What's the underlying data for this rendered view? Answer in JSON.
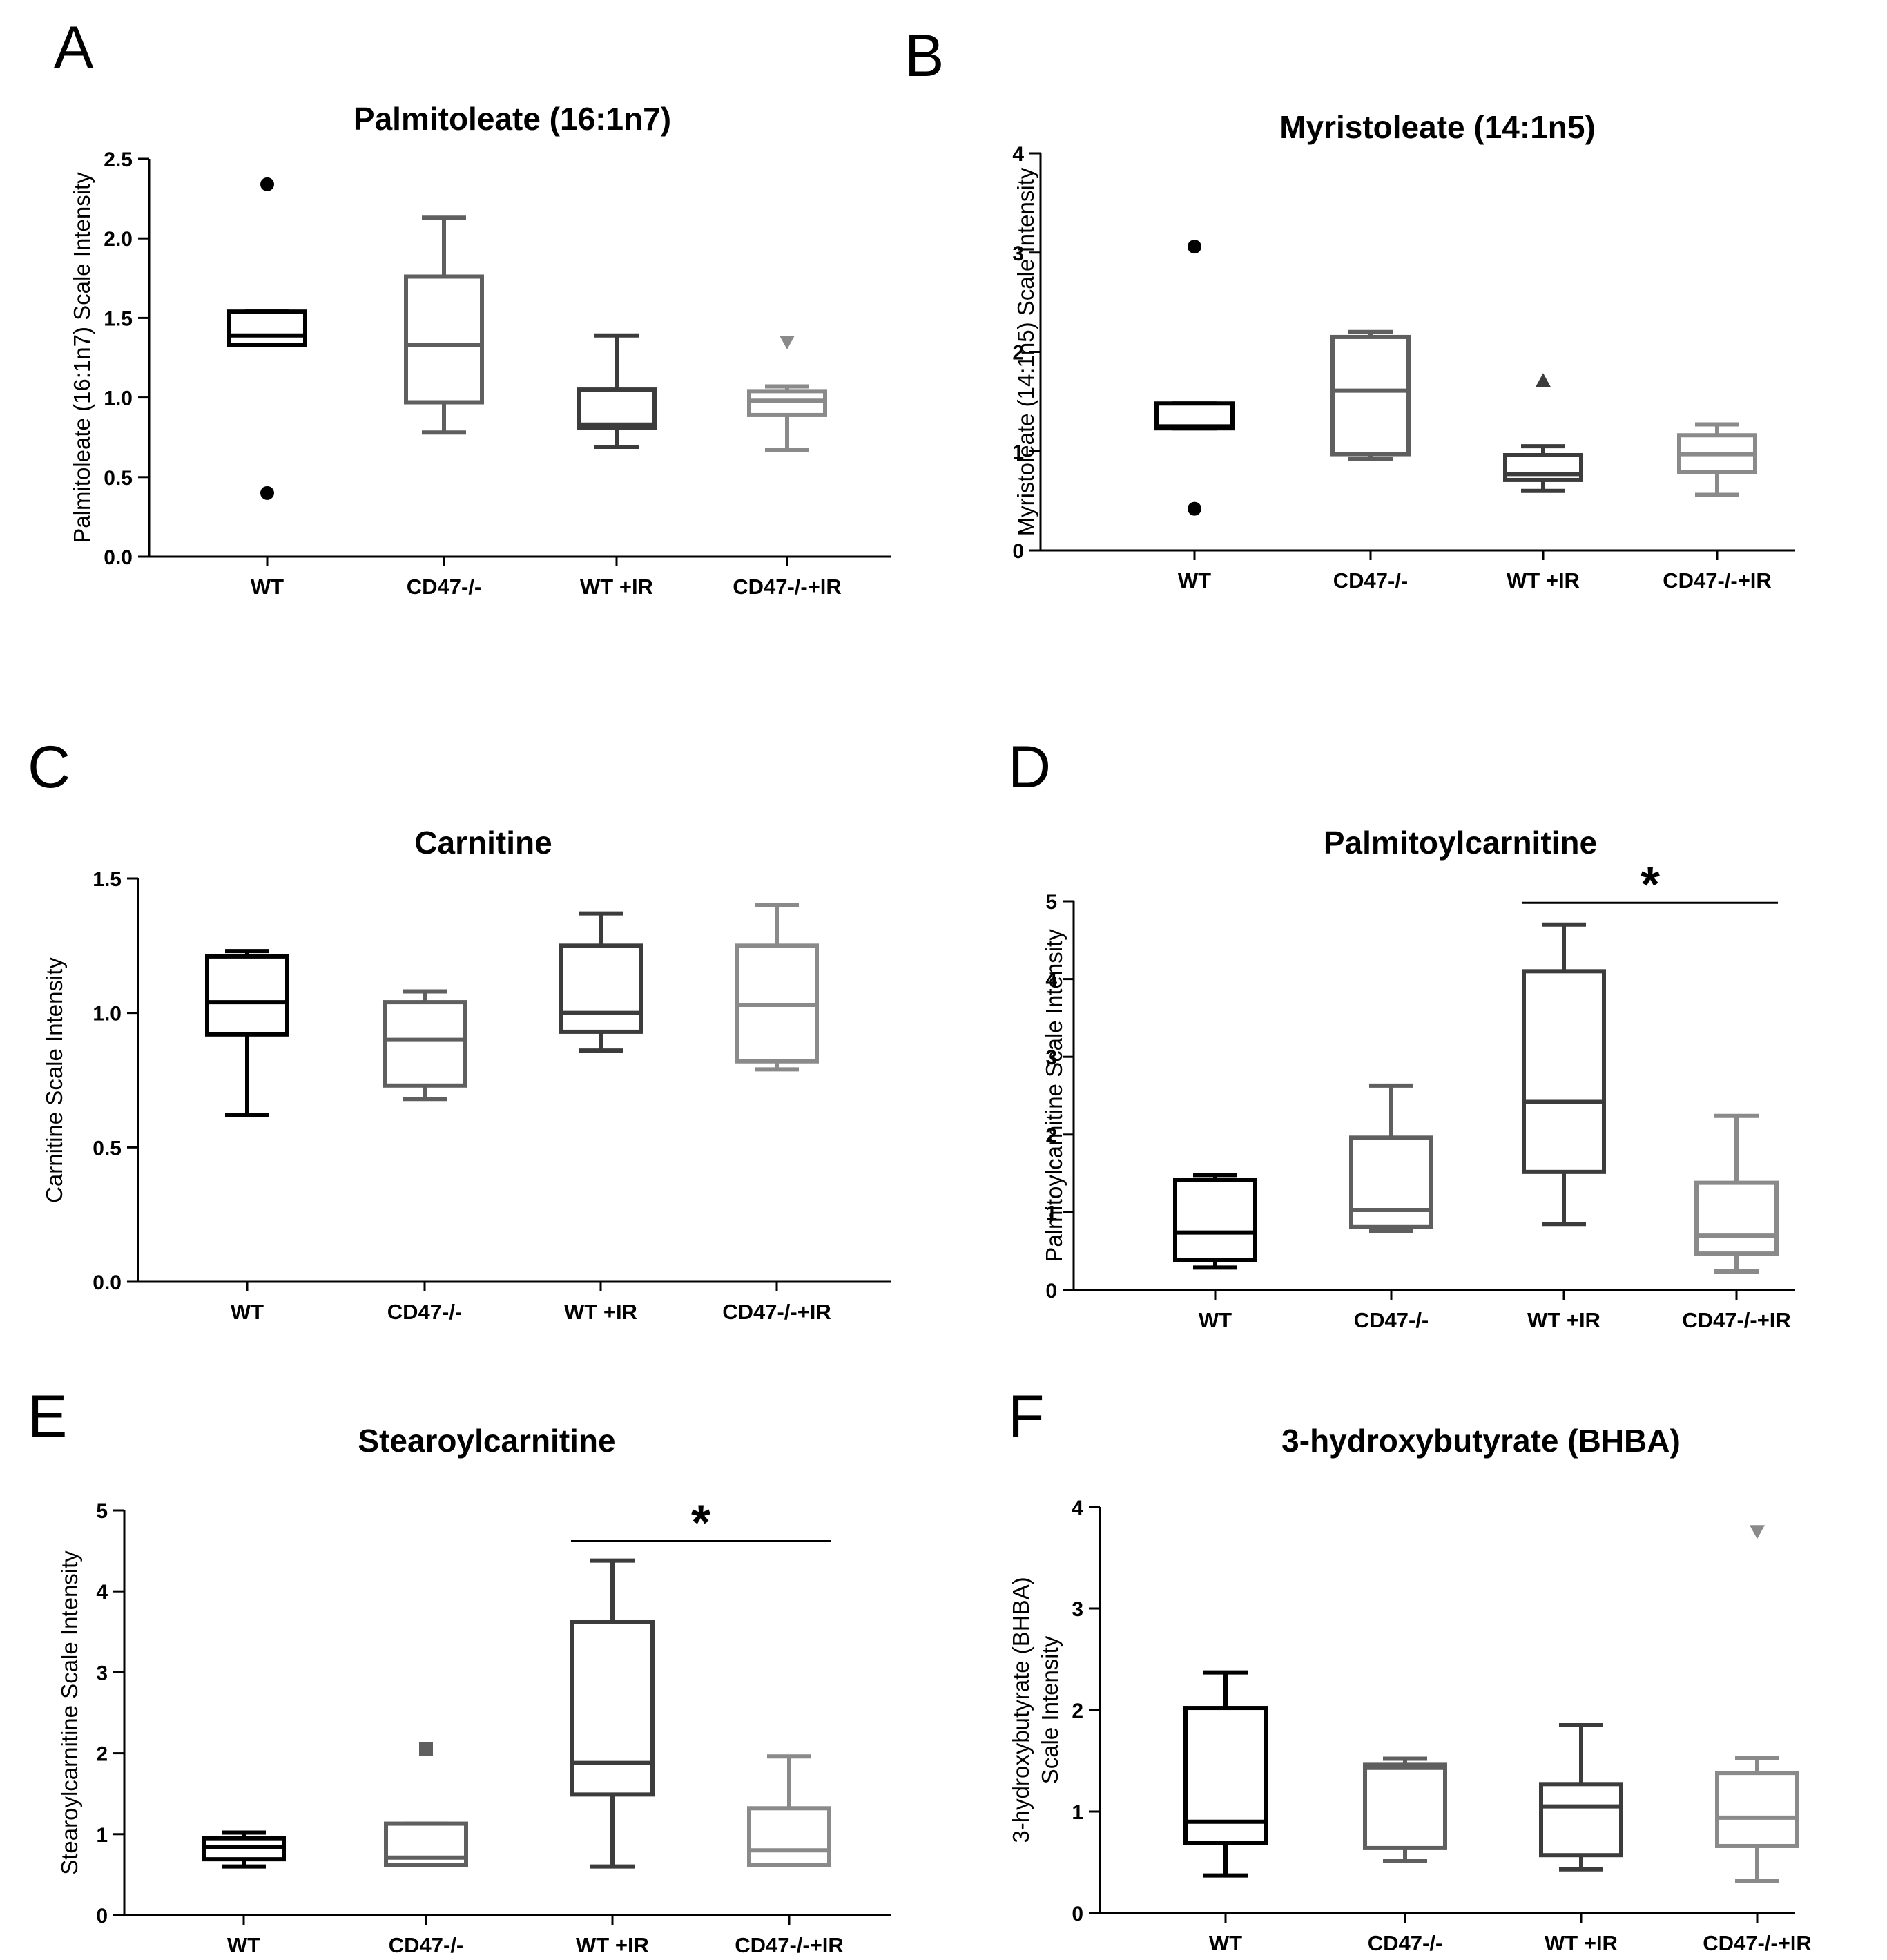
{
  "chart_data": [
    {
      "panel": "A",
      "type": "box",
      "title": "Palmitoleate (16:1n7)",
      "ylabel": "Palmitoleate (16:1n7) Scale Intensity",
      "xlabel": "",
      "ylim": [
        0,
        2.5
      ],
      "yticks": [
        "0.0",
        "0.5",
        "1.0",
        "1.5",
        "2.0",
        "2.5"
      ],
      "categories": [
        "WT",
        "CD47-/-",
        "WT +IR",
        "CD47-/-+IR"
      ],
      "boxes": [
        {
          "group": "WT",
          "color": "#000000",
          "whisker_low": 1.33,
          "q1": 1.33,
          "median": 1.39,
          "q3": 1.54,
          "whisker_high": 1.54,
          "outliers": [
            {
              "value": 2.34,
              "marker": "circle"
            },
            {
              "value": 0.4,
              "marker": "circle"
            }
          ]
        },
        {
          "group": "CD47-/-",
          "color": "#5f5f5f",
          "whisker_low": 0.78,
          "q1": 0.97,
          "median": 1.33,
          "q3": 1.76,
          "whisker_high": 2.13,
          "outliers": []
        },
        {
          "group": "WT +IR",
          "color": "#3c3c3c",
          "whisker_low": 0.69,
          "q1": 0.81,
          "median": 0.83,
          "q3": 1.05,
          "whisker_high": 1.39,
          "outliers": []
        },
        {
          "group": "CD47-/-+IR",
          "color": "#8a8a8a",
          "whisker_low": 0.67,
          "q1": 0.89,
          "median": 0.98,
          "q3": 1.04,
          "whisker_high": 1.07,
          "outliers": [
            {
              "value": 1.35,
              "marker": "triangle-down"
            }
          ]
        }
      ],
      "significance": null
    },
    {
      "panel": "B",
      "type": "box",
      "title": "Myristoleate (14:1n5)",
      "ylabel": "Myristoleate (14:1n5) Scale Intensity",
      "xlabel": "",
      "ylim": [
        0,
        4
      ],
      "yticks": [
        "0",
        "1",
        "2",
        "3",
        "4"
      ],
      "categories": [
        "WT",
        "CD47-/-",
        "WT +IR",
        "CD47-/-+IR"
      ],
      "boxes": [
        {
          "group": "WT",
          "color": "#000000",
          "whisker_low": 1.23,
          "q1": 1.23,
          "median": 1.25,
          "q3": 1.48,
          "whisker_high": 1.48,
          "outliers": [
            {
              "value": 3.06,
              "marker": "circle"
            },
            {
              "value": 0.42,
              "marker": "circle"
            }
          ]
        },
        {
          "group": "CD47-/-",
          "color": "#5f5f5f",
          "whisker_low": 0.92,
          "q1": 0.97,
          "median": 1.61,
          "q3": 2.15,
          "whisker_high": 2.2,
          "outliers": []
        },
        {
          "group": "WT +IR",
          "color": "#3c3c3c",
          "whisker_low": 0.6,
          "q1": 0.71,
          "median": 0.77,
          "q3": 0.96,
          "whisker_high": 1.05,
          "outliers": [
            {
              "value": 1.71,
              "marker": "triangle-up"
            }
          ]
        },
        {
          "group": "CD47-/-+IR",
          "color": "#8a8a8a",
          "whisker_low": 0.56,
          "q1": 0.79,
          "median": 0.97,
          "q3": 1.16,
          "whisker_high": 1.27,
          "outliers": []
        }
      ],
      "significance": null
    },
    {
      "panel": "C",
      "type": "box",
      "title": "Carnitine",
      "ylabel": "Carnitine Scale Intensity",
      "xlabel": "",
      "ylim": [
        0,
        1.5
      ],
      "yticks": [
        "0.0",
        "0.5",
        "1.0",
        "1.5"
      ],
      "categories": [
        "WT",
        "CD47-/-",
        "WT +IR",
        "CD47-/-+IR"
      ],
      "boxes": [
        {
          "group": "WT",
          "color": "#000000",
          "whisker_low": 0.62,
          "q1": 0.92,
          "median": 1.04,
          "q3": 1.21,
          "whisker_high": 1.23,
          "outliers": []
        },
        {
          "group": "CD47-/-",
          "color": "#5f5f5f",
          "whisker_low": 0.68,
          "q1": 0.73,
          "median": 0.9,
          "q3": 1.04,
          "whisker_high": 1.08,
          "outliers": []
        },
        {
          "group": "WT +IR",
          "color": "#3c3c3c",
          "whisker_low": 0.86,
          "q1": 0.93,
          "median": 1.0,
          "q3": 1.25,
          "whisker_high": 1.37,
          "outliers": []
        },
        {
          "group": "CD47-/-+IR",
          "color": "#8a8a8a",
          "whisker_low": 0.79,
          "q1": 0.82,
          "median": 1.03,
          "q3": 1.25,
          "whisker_high": 1.4,
          "outliers": []
        }
      ],
      "significance": null
    },
    {
      "panel": "D",
      "type": "box",
      "title": "Palmitoylcarnitine",
      "ylabel": "Palmitoylcarnitine Scale Intensity",
      "xlabel": "",
      "ylim": [
        0,
        5
      ],
      "yticks": [
        "0",
        "1",
        "2",
        "3",
        "4",
        "5"
      ],
      "categories": [
        "WT",
        "CD47-/-",
        "WT +IR",
        "CD47-/-+IR"
      ],
      "boxes": [
        {
          "group": "WT",
          "color": "#000000",
          "whisker_low": 0.29,
          "q1": 0.39,
          "median": 0.74,
          "q3": 1.42,
          "whisker_high": 1.48,
          "outliers": []
        },
        {
          "group": "CD47-/-",
          "color": "#5f5f5f",
          "whisker_low": 0.76,
          "q1": 0.81,
          "median": 1.03,
          "q3": 1.96,
          "whisker_high": 2.63,
          "outliers": []
        },
        {
          "group": "WT +IR",
          "color": "#3c3c3c",
          "whisker_low": 0.85,
          "q1": 1.52,
          "median": 2.42,
          "q3": 4.1,
          "whisker_high": 4.7,
          "outliers": []
        },
        {
          "group": "CD47-/-+IR",
          "color": "#8a8a8a",
          "whisker_low": 0.24,
          "q1": 0.47,
          "median": 0.7,
          "q3": 1.38,
          "whisker_high": 2.24,
          "outliers": []
        }
      ],
      "significance": {
        "label": "*",
        "from": "WT +IR",
        "to": "CD47-/-+IR",
        "y": 4.98
      }
    },
    {
      "panel": "E",
      "type": "box",
      "title": "Stearoylcarnitine",
      "ylabel": "Stearoylcarnitine Scale Intensity",
      "xlabel": "",
      "ylim": [
        0,
        5
      ],
      "yticks": [
        "0",
        "1",
        "2",
        "3",
        "4",
        "5"
      ],
      "categories": [
        "WT",
        "CD47-/-",
        "WT +IR",
        "CD47-/-+IR"
      ],
      "boxes": [
        {
          "group": "WT",
          "color": "#000000",
          "whisker_low": 0.6,
          "q1": 0.69,
          "median": 0.84,
          "q3": 0.95,
          "whisker_high": 1.02,
          "outliers": []
        },
        {
          "group": "CD47-/-",
          "color": "#5f5f5f",
          "whisker_low": 0.62,
          "q1": 0.62,
          "median": 0.71,
          "q3": 1.13,
          "whisker_high": 1.13,
          "outliers": [
            {
              "value": 2.05,
              "marker": "square"
            }
          ]
        },
        {
          "group": "WT +IR",
          "color": "#3c3c3c",
          "whisker_low": 0.6,
          "q1": 1.49,
          "median": 1.88,
          "q3": 3.62,
          "whisker_high": 4.38,
          "outliers": []
        },
        {
          "group": "CD47-/-+IR",
          "color": "#8a8a8a",
          "whisker_low": 0.62,
          "q1": 0.62,
          "median": 0.8,
          "q3": 1.32,
          "whisker_high": 1.96,
          "outliers": []
        }
      ],
      "significance": {
        "label": "*",
        "from": "WT +IR",
        "to": "CD47-/-+IR",
        "y": 4.62
      }
    },
    {
      "panel": "F",
      "type": "box",
      "title": "3-hydroxybutyrate (BHBA)",
      "ylabel": "3-hydroxybutyrate (BHBA) Scale Intensity",
      "ylabel_lines": [
        "3-hydroxybutyrate (BHBA)",
        "Scale Intensity"
      ],
      "xlabel": "",
      "ylim": [
        0,
        4
      ],
      "yticks": [
        "0",
        "1",
        "2",
        "3",
        "4"
      ],
      "categories": [
        "WT",
        "CD47-/-",
        "WT +IR",
        "CD47-/-+IR"
      ],
      "boxes": [
        {
          "group": "WT",
          "color": "#000000",
          "whisker_low": 0.37,
          "q1": 0.69,
          "median": 0.9,
          "q3": 2.02,
          "whisker_high": 2.37,
          "outliers": []
        },
        {
          "group": "CD47-/-",
          "color": "#5f5f5f",
          "whisker_low": 0.51,
          "q1": 0.64,
          "median": 1.43,
          "q3": 1.46,
          "whisker_high": 1.52,
          "outliers": []
        },
        {
          "group": "WT +IR",
          "color": "#3c3c3c",
          "whisker_low": 0.43,
          "q1": 0.57,
          "median": 1.05,
          "q3": 1.27,
          "whisker_high": 1.85,
          "outliers": []
        },
        {
          "group": "CD47-/-+IR",
          "color": "#8a8a8a",
          "whisker_low": 0.32,
          "q1": 0.66,
          "median": 0.94,
          "q3": 1.38,
          "whisker_high": 1.53,
          "outliers": [
            {
              "value": 3.76,
              "marker": "triangle-down"
            }
          ]
        }
      ],
      "significance": null
    }
  ]
}
